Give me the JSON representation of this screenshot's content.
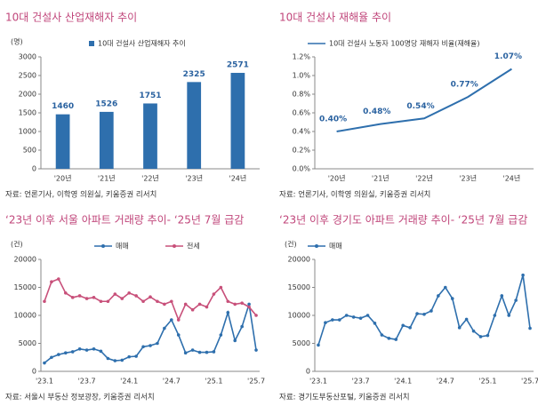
{
  "chart_data": [
    {
      "type": "bar",
      "title": "10대 건설사 산업재해자 추이",
      "y_label": "(명)",
      "categories": [
        "'20년",
        "'21년",
        "'22년",
        "'23년",
        "'24년"
      ],
      "series": [
        {
          "name": "10대 건설사 산업재해자 추이",
          "color": "#2e6fad",
          "values": [
            1460,
            1526,
            1751,
            2325,
            2571
          ]
        }
      ],
      "ylim": [
        0,
        3000
      ],
      "yticks": [
        0,
        500,
        1000,
        1500,
        2000,
        2500,
        3000
      ],
      "source": "자료: 언론기사, 이학영 의원실, 키움증권 리서치"
    },
    {
      "type": "line",
      "title": "10대 건설사 재해율 추이",
      "categories": [
        "'20년",
        "'21년",
        "'22년",
        "'23년",
        "'24년"
      ],
      "series": [
        {
          "name": "10대 건설사 노동자 100명당 재해자 비율(재해율)",
          "color": "#2e6fad",
          "values": [
            0.4,
            0.48,
            0.54,
            0.77,
            1.07
          ],
          "value_labels": [
            "0.40%",
            "0.48%",
            "0.54%",
            "0.77%",
            "1.07%"
          ]
        }
      ],
      "ylim": [
        0,
        1.2
      ],
      "yticks": [
        {
          "value": 0,
          "label": "0.0%"
        },
        {
          "value": 0.2,
          "label": "0.2%"
        },
        {
          "value": 0.4,
          "label": "0.4%"
        },
        {
          "value": 0.6,
          "label": "0.6%"
        },
        {
          "value": 0.8,
          "label": "0.8%"
        },
        {
          "value": 1.0,
          "label": "1.0%"
        },
        {
          "value": 1.2,
          "label": "1.2%"
        }
      ],
      "source": "자료: 언론기사, 이학영 의원실, 키움증권 리서치"
    },
    {
      "type": "line",
      "title": "‘23년 이후 서울 아파트 거래량 추이- ‘25년 7월 급감",
      "y_label": "(건)",
      "markers": true,
      "categories": [
        "'23.1",
        null,
        null,
        null,
        null,
        null,
        "'23.7",
        null,
        null,
        null,
        null,
        null,
        "'24.1",
        null,
        null,
        null,
        null,
        null,
        "'24.7",
        null,
        null,
        null,
        null,
        null,
        "'25.1",
        null,
        null,
        null,
        null,
        null,
        "'25.7"
      ],
      "series": [
        {
          "name": "매매",
          "color": "#2e6fad",
          "values": [
            1500,
            2500,
            3000,
            3300,
            3500,
            4000,
            3800,
            4000,
            3600,
            2300,
            1900,
            2000,
            2600,
            2700,
            4400,
            4600,
            5000,
            7700,
            9200,
            6500,
            3300,
            3800,
            3400,
            3400,
            3500,
            6500,
            10500,
            5500,
            8000,
            12000,
            3800
          ]
        },
        {
          "name": "전세",
          "color": "#c8507a",
          "values": [
            12500,
            16000,
            16500,
            14000,
            13200,
            13500,
            13000,
            13200,
            12500,
            12500,
            13800,
            13000,
            14000,
            13500,
            12500,
            13300,
            12500,
            12000,
            12500,
            9200,
            12000,
            11000,
            12000,
            11500,
            13800,
            15000,
            12500,
            12000,
            12200,
            11500,
            10000
          ]
        }
      ],
      "ylim": [
        0,
        20000
      ],
      "yticks": [
        0,
        5000,
        10000,
        15000,
        20000
      ],
      "source": "자료: 서울시 부동산 정보광장, 키움증권 리서치"
    },
    {
      "type": "line",
      "title": "‘23년 이후 경기도 아파트 거래량 추이- ‘25년 7월 급감",
      "y_label": "(건)",
      "markers": true,
      "categories": [
        "'23.1",
        null,
        null,
        null,
        null,
        null,
        "'23.7",
        null,
        null,
        null,
        null,
        null,
        "'24.1",
        null,
        null,
        null,
        null,
        null,
        "'24.7",
        null,
        null,
        null,
        null,
        null,
        "'25.1",
        null,
        null,
        null,
        null,
        null,
        "'25.7"
      ],
      "series": [
        {
          "name": "매매",
          "color": "#2e6fad",
          "values": [
            4700,
            8700,
            9200,
            9200,
            10000,
            9700,
            9500,
            10000,
            8600,
            6500,
            5900,
            5700,
            8200,
            7800,
            10300,
            10200,
            10800,
            13500,
            15000,
            13000,
            7800,
            9300,
            7200,
            6200,
            6400,
            10000,
            13500,
            10000,
            12700,
            17200,
            7700
          ]
        }
      ],
      "ylim": [
        0,
        20000
      ],
      "yticks": [
        0,
        5000,
        10000,
        15000,
        20000
      ],
      "source": "자료: 경기도부동산포털, 키움증권 리서치"
    }
  ]
}
